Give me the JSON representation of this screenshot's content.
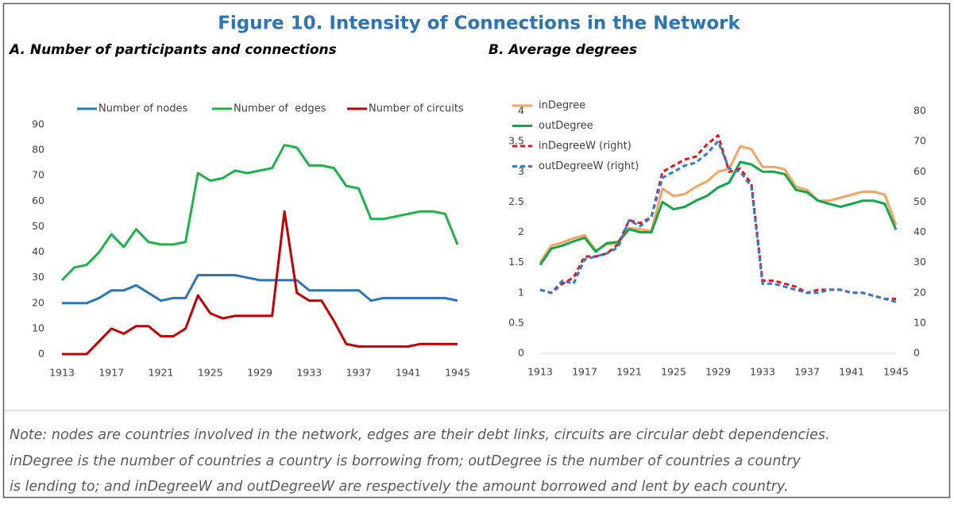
{
  "title": "Figure 10. Intensity of Connections in the Network",
  "note": [
    "Note: nodes are countries involved in the network, edges are their debt links, circuits are circular debt dependencies.",
    "inDegree is the number of countries a country is borrowing from; outDegree is the number of countries a country",
    "is lending to; and inDegreeW and outDegreeW are respectively the amount borrowed and lent by each country."
  ],
  "chart_data": [
    {
      "type": "line",
      "title": "A. Number of participants and connections",
      "x": [
        1913,
        1914,
        1915,
        1916,
        1917,
        1918,
        1919,
        1920,
        1921,
        1922,
        1923,
        1924,
        1925,
        1926,
        1927,
        1928,
        1929,
        1930,
        1931,
        1932,
        1933,
        1934,
        1935,
        1936,
        1937,
        1938,
        1939,
        1940,
        1941,
        1942,
        1943,
        1944,
        1945
      ],
      "xlim": [
        1913,
        1945
      ],
      "xticks": [
        1913,
        1917,
        1921,
        1925,
        1929,
        1933,
        1937,
        1941,
        1945
      ],
      "ylim": [
        0,
        90
      ],
      "yticks": [
        0,
        10,
        20,
        30,
        40,
        50,
        60,
        70,
        80,
        90
      ],
      "legend": "top",
      "series": [
        {
          "name": "Number of nodes",
          "color": "#2e75b6",
          "values": [
            20,
            20,
            20,
            22,
            25,
            25,
            27,
            24,
            21,
            22,
            22,
            31,
            31,
            31,
            31,
            30,
            29,
            29,
            29,
            29,
            25,
            25,
            25,
            25,
            25,
            21,
            22,
            22,
            22,
            22,
            22,
            22,
            21
          ]
        },
        {
          "name": "Number of  edges",
          "color": "#1fb24a",
          "values": [
            29,
            34,
            35,
            40,
            47,
            42,
            49,
            44,
            43,
            43,
            44,
            71,
            68,
            69,
            72,
            71,
            72,
            73,
            82,
            81,
            74,
            74,
            73,
            66,
            65,
            53,
            53,
            54,
            55,
            56,
            56,
            55,
            43
          ]
        },
        {
          "name": "Number of circuits",
          "color": "#c00000",
          "values": [
            0,
            0,
            0,
            5,
            10,
            8,
            11,
            11,
            7,
            7,
            10,
            23,
            16,
            14,
            15,
            15,
            15,
            15,
            56,
            24,
            21,
            21,
            13,
            4,
            3,
            3,
            3,
            3,
            3,
            4,
            4,
            4,
            4
          ]
        }
      ]
    },
    {
      "type": "line",
      "title": "B. Average degrees",
      "x": [
        1913,
        1914,
        1915,
        1916,
        1917,
        1918,
        1919,
        1920,
        1921,
        1922,
        1923,
        1924,
        1925,
        1926,
        1927,
        1928,
        1929,
        1930,
        1931,
        1932,
        1933,
        1934,
        1935,
        1936,
        1937,
        1938,
        1939,
        1940,
        1941,
        1942,
        1943,
        1944,
        1945
      ],
      "xlim": [
        1913,
        1945
      ],
      "xticks": [
        1913,
        1917,
        1921,
        1925,
        1929,
        1933,
        1937,
        1941,
        1945
      ],
      "ylim": [
        0,
        4
      ],
      "yticks": [
        0,
        0.5,
        1,
        1.5,
        2,
        2.5,
        3,
        3.5,
        4
      ],
      "y2lim": [
        0,
        80
      ],
      "y2ticks": [
        0,
        10,
        20,
        30,
        40,
        50,
        60,
        70,
        80
      ],
      "legend": "upper left",
      "series": [
        {
          "name": "inDegree",
          "color": "#f4a460",
          "values": [
            1.5,
            1.78,
            1.83,
            1.9,
            1.95,
            1.7,
            1.8,
            1.82,
            2.07,
            2.05,
            2.02,
            2.72,
            2.6,
            2.63,
            2.75,
            2.84,
            3.0,
            3.05,
            3.42,
            3.37,
            3.08,
            3.08,
            3.04,
            2.75,
            2.7,
            2.52,
            2.52,
            2.57,
            2.62,
            2.67,
            2.67,
            2.62,
            2.12
          ]
        },
        {
          "name": "outDegree",
          "color": "#12a64a",
          "values": [
            1.46,
            1.73,
            1.78,
            1.85,
            1.91,
            1.68,
            1.82,
            1.84,
            2.05,
            2.0,
            2.0,
            2.5,
            2.38,
            2.42,
            2.52,
            2.6,
            2.74,
            2.82,
            3.16,
            3.12,
            3.0,
            3.0,
            2.96,
            2.7,
            2.66,
            2.52,
            2.47,
            2.42,
            2.47,
            2.52,
            2.52,
            2.47,
            2.04
          ]
        },
        {
          "name": "inDegreeW (right)",
          "color": "#e8141b",
          "linestyle": "dashed",
          "axis": "y2",
          "values": [
            21,
            20,
            23,
            25,
            32,
            32,
            33,
            36,
            44,
            43,
            45,
            60,
            62,
            64,
            65,
            69,
            72,
            60,
            61,
            56,
            24,
            24,
            23,
            22,
            20,
            21,
            21,
            21,
            20,
            20,
            19,
            18,
            18
          ]
        },
        {
          "name": "outDegreeW (right)",
          "color": "#2f7bd0",
          "linestyle": "dashed",
          "axis": "y2",
          "values": [
            21,
            20,
            24,
            23,
            31,
            32,
            33,
            35,
            44,
            42,
            45,
            58,
            60,
            62,
            63,
            66,
            70,
            61,
            60,
            55,
            23,
            23,
            22,
            21,
            20,
            20,
            21,
            21,
            20,
            20,
            19,
            18,
            17
          ]
        }
      ]
    }
  ]
}
